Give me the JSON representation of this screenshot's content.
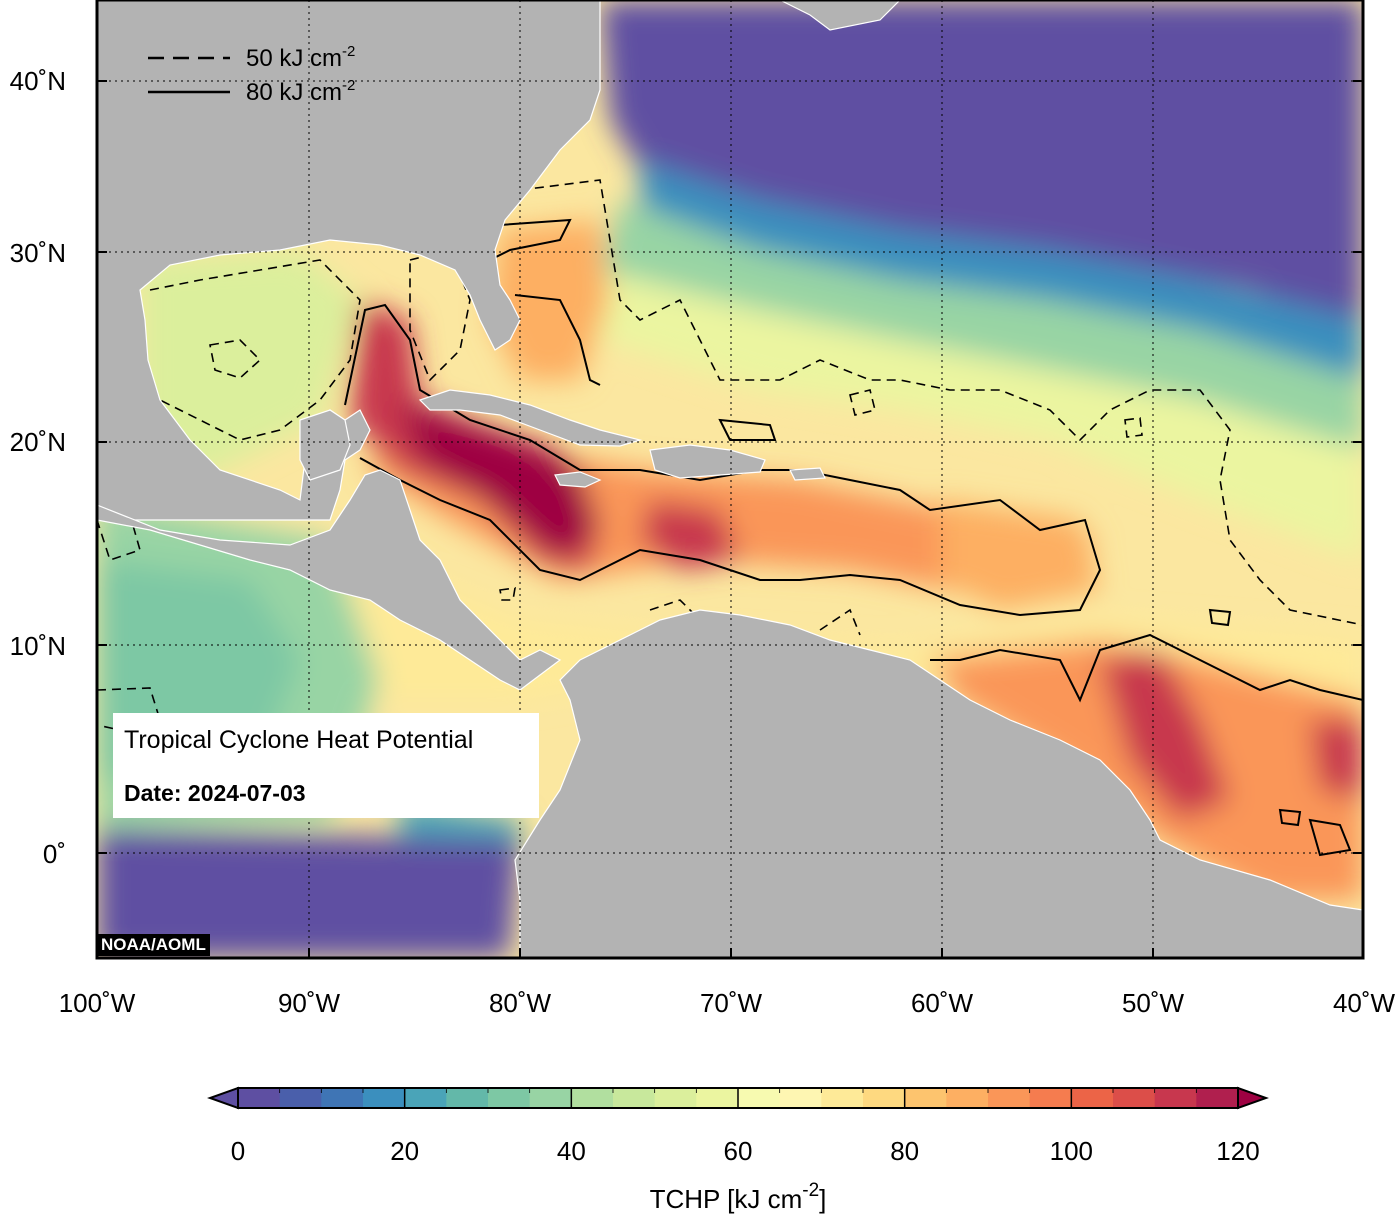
{
  "legend": {
    "dashed_label": "50 kJ cm",
    "solid_label": "80 kJ cm",
    "exponent": "-2"
  },
  "info": {
    "title": "Tropical Cyclone Heat Potential",
    "date": "Date: 2024-07-03"
  },
  "credit": "NOAA/AOML",
  "axes": {
    "lon_labels": [
      "100˚W",
      "90˚W",
      "80˚W",
      "70˚W",
      "60˚W",
      "50˚W",
      "40˚W"
    ],
    "lat_labels": [
      "40˚N",
      "30˚N",
      "20˚N",
      "10˚N",
      "0˚"
    ],
    "lon_range": [
      -100,
      -40
    ],
    "lat_range": [
      -5,
      44
    ]
  },
  "colorbar": {
    "label": "TCHP [kJ cm",
    "label_exponent": "-2",
    "label_close": "]",
    "ticks": [
      "0",
      "20",
      "40",
      "60",
      "80",
      "100",
      "120"
    ],
    "min": 0,
    "max": 120,
    "step": 5,
    "colors": [
      "#5e4fa2",
      "#4a5fab",
      "#3f75b5",
      "#3b8fbe",
      "#4aa4b8",
      "#63b8a9",
      "#7dc8a4",
      "#98d4a4",
      "#b1df9f",
      "#c8e89c",
      "#dbef9c",
      "#ebf5a0",
      "#f7fab0",
      "#fef6b2",
      "#feea98",
      "#fed980",
      "#fdc46e",
      "#fdaf62",
      "#fa9658",
      "#f57c4f",
      "#ec6447",
      "#dc4e49",
      "#c8374e",
      "#b01f4e",
      "#9e0142"
    ]
  }
}
